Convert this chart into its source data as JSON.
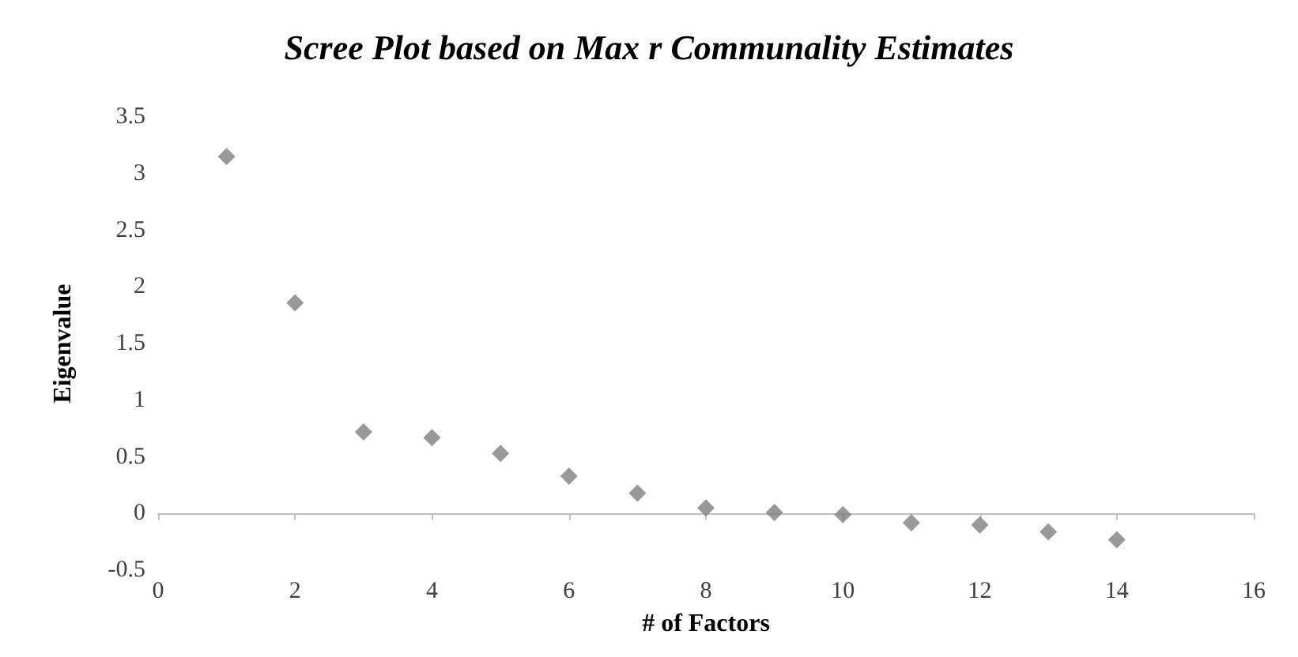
{
  "chart_data": {
    "type": "scatter",
    "title": "Scree Plot based on Max r Communality Estimates",
    "xlabel": "# of Factors",
    "ylabel": "Eigenvalue",
    "x": [
      1,
      2,
      3,
      4,
      5,
      6,
      7,
      8,
      9,
      10,
      11,
      12,
      13,
      14
    ],
    "series": [
      {
        "color": "#7f7f7f",
        "values": [
          3.15,
          1.86,
          0.72,
          0.67,
          0.53,
          0.33,
          0.18,
          0.05,
          0.01,
          -0.01,
          -0.08,
          -0.1,
          -0.16,
          -0.23
        ]
      }
    ],
    "xlim": [
      0,
      16
    ],
    "xticks": [
      0,
      2,
      4,
      6,
      8,
      10,
      12,
      14,
      16
    ],
    "ylim": [
      -0.5,
      3.5
    ],
    "yticks": [
      -0.5,
      0,
      0.5,
      1,
      1.5,
      2,
      2.5,
      3,
      3.5
    ],
    "marker": "diamond"
  }
}
